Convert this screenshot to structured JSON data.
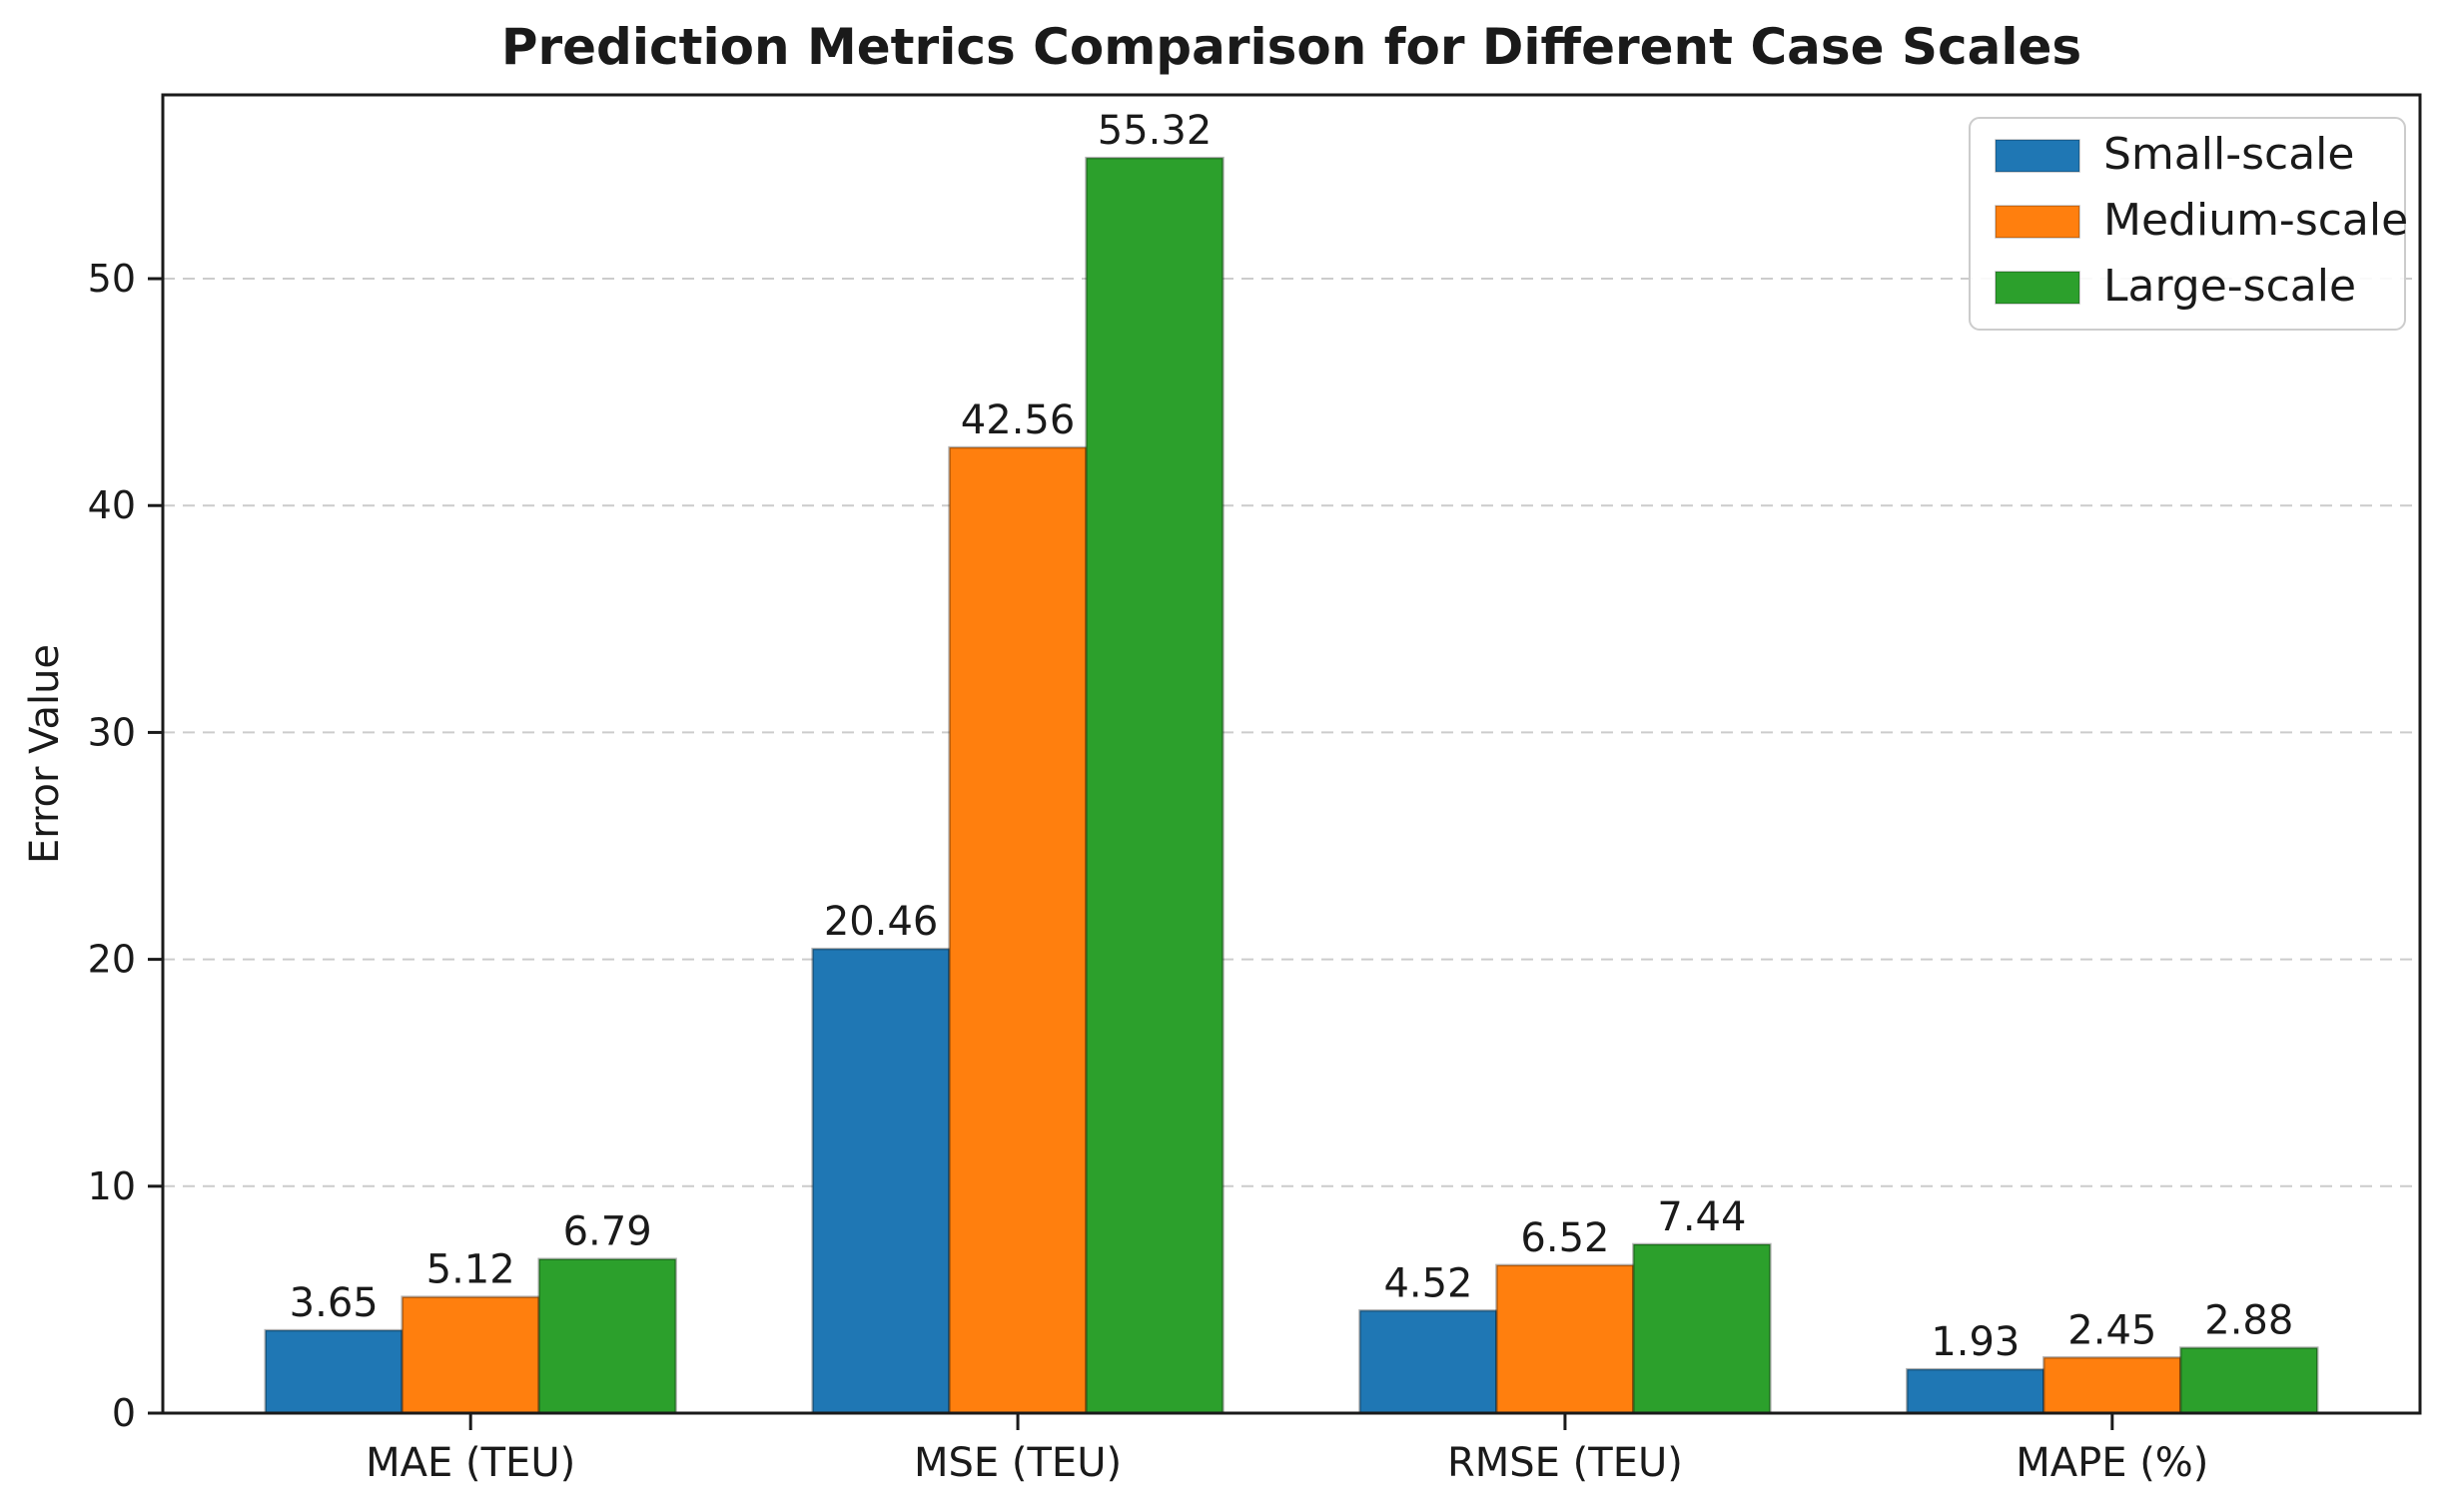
{
  "chart_data": {
    "type": "bar",
    "title": "Prediction Metrics Comparison for Different Case Scales",
    "xlabel": "",
    "ylabel": "Error Value",
    "categories": [
      "MAE (TEU)",
      "MSE (TEU)",
      "RMSE (TEU)",
      "MAPE (%)"
    ],
    "series": [
      {
        "name": "Small-scale",
        "color": "#1f77b4",
        "values": [
          3.65,
          20.46,
          4.52,
          1.93
        ]
      },
      {
        "name": "Medium-scale",
        "color": "#ff7f0e",
        "values": [
          5.12,
          42.56,
          6.52,
          2.45
        ]
      },
      {
        "name": "Large-scale",
        "color": "#2ca02c",
        "values": [
          6.79,
          55.32,
          7.44,
          2.88
        ]
      }
    ],
    "yticks": [
      0,
      10,
      20,
      30,
      40,
      50
    ],
    "ylim": [
      0,
      58.1
    ],
    "grid": "horizontal-dashed",
    "grid_color": "#cccccc",
    "spine_color": "#1a1a1a",
    "legend_position": "upper-right",
    "value_labels": true
  }
}
